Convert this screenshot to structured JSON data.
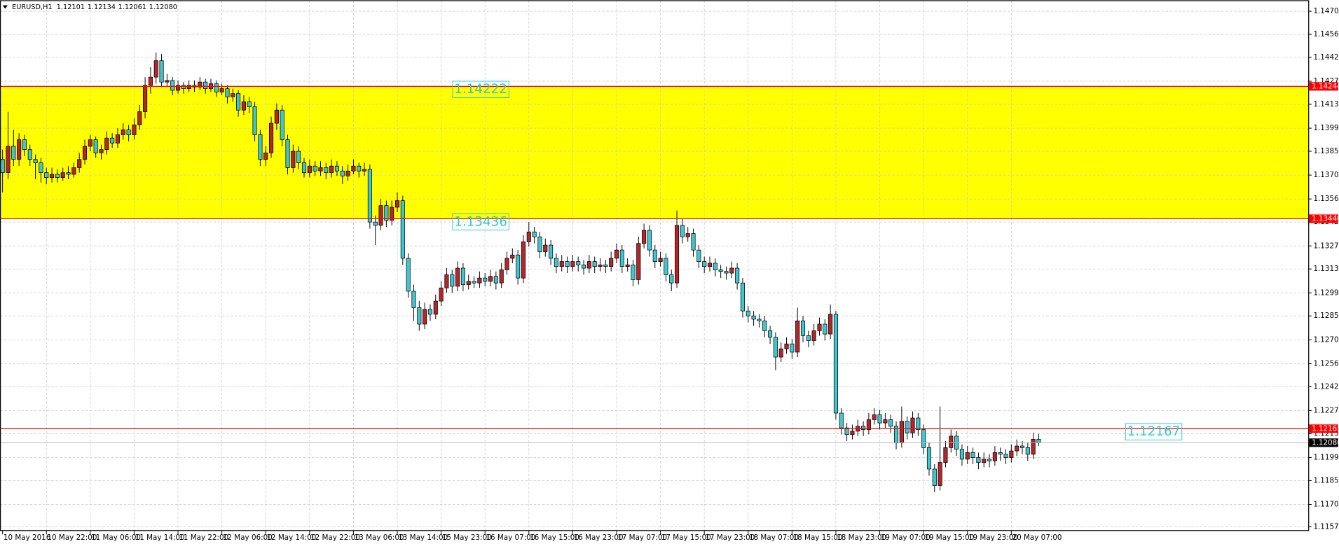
{
  "chart_data": {
    "type": "candlestick",
    "symbol": "EURUSD,H1",
    "header": [
      "1.12101",
      "1.12134",
      "1.12061",
      "1.12080"
    ],
    "ylim": [
      1.11544,
      1.14767
    ],
    "yticks": [
      {
        "value": 1.147,
        "label": "1.14700"
      },
      {
        "value": 1.1456,
        "label": "1.14560"
      },
      {
        "value": 1.1442,
        "label": "1.14420"
      },
      {
        "value": 1.14275,
        "label": "1.14275"
      },
      {
        "value": 1.14135,
        "label": "1.14135"
      },
      {
        "value": 1.1399,
        "label": "1.13990"
      },
      {
        "value": 1.1385,
        "label": "1.13850"
      },
      {
        "value": 1.13705,
        "label": "1.13705"
      },
      {
        "value": 1.1356,
        "label": "1.13560"
      },
      {
        "value": 1.1342,
        "label": "1.13420"
      },
      {
        "value": 1.13275,
        "label": "1.13275"
      },
      {
        "value": 1.13135,
        "label": "1.13135"
      },
      {
        "value": 1.1299,
        "label": "1.12990"
      },
      {
        "value": 1.1285,
        "label": "1.12850"
      },
      {
        "value": 1.12705,
        "label": "1.12705"
      },
      {
        "value": 1.1256,
        "label": "1.12560"
      },
      {
        "value": 1.1242,
        "label": "1.12420"
      },
      {
        "value": 1.12275,
        "label": "1.12275"
      },
      {
        "value": 1.12135,
        "label": "1.12135"
      },
      {
        "value": 1.1199,
        "label": "1.11990"
      },
      {
        "value": 1.1185,
        "label": "1.11850"
      },
      {
        "value": 1.11705,
        "label": "1.11705"
      },
      {
        "value": 1.1157,
        "label": "1.11570"
      }
    ],
    "grid": true,
    "up_color": "#b3262b",
    "down_color": "#3fc6cf",
    "level_color": "#ff0000",
    "zone_color": "#ffff00",
    "levels": [
      1.14244,
      {
        "value": 1.1344,
        "label": "1.13440"
      },
      1.12165
    ],
    "annotations": [
      "1.14222",
      "1.13436",
      "1.12167"
    ],
    "bid": {
      "value": 1.1208,
      "label": "1.12080"
    },
    "categories": [
      "10 May 2016",
      null,
      null,
      null,
      null,
      null,
      null,
      null,
      "10 May 22:00",
      null,
      null,
      null,
      null,
      null,
      null,
      null,
      "11 May 06:00",
      null,
      null,
      null,
      null,
      null,
      null,
      null,
      "11 May 14:00",
      null,
      null,
      null,
      null,
      null,
      null,
      null,
      "11 May 22:00",
      null,
      null,
      null,
      null,
      null,
      null,
      null,
      "12 May 06:00",
      null,
      null,
      null,
      null,
      null,
      null,
      null,
      "12 May 14:00",
      null,
      null,
      null,
      null,
      null,
      null,
      null,
      "12 May 22:00",
      null,
      null,
      null,
      null,
      null,
      null,
      null,
      "13 May 06:00",
      null,
      null,
      null,
      null,
      null,
      null,
      null,
      "13 May 14:00",
      null,
      null,
      null,
      null,
      null,
      null,
      null,
      "15 May 23:00",
      null,
      null,
      null,
      null,
      null,
      null,
      null,
      "16 May 07:00",
      null,
      null,
      null,
      null,
      null,
      null,
      null,
      "16 May 15:00",
      null,
      null,
      null,
      null,
      null,
      null,
      null,
      "16 May 23:00",
      null,
      null,
      null,
      null,
      null,
      null,
      null,
      "17 May 07:00",
      null,
      null,
      null,
      null,
      null,
      null,
      null,
      "17 May 15:00",
      null,
      null,
      null,
      null,
      null,
      null,
      null,
      "17 May 23:00",
      null,
      null,
      null,
      null,
      null,
      null,
      null,
      "18 May 07:00",
      null,
      null,
      null,
      null,
      null,
      null,
      null,
      "18 May 15:00",
      null,
      null,
      null,
      null,
      null,
      null,
      null,
      "18 May 23:00",
      null,
      null,
      null,
      null,
      null,
      null,
      null,
      "19 May 07:00",
      null,
      null,
      null,
      null,
      null,
      null,
      null,
      "19 May 15:00",
      null,
      null,
      null,
      null,
      null,
      null,
      null,
      "19 May 23:00",
      null,
      null,
      null,
      null,
      null,
      null,
      null,
      "20 May 07:00",
      null,
      null,
      null,
      null,
      null
    ],
    "ohlc": [
      [
        1.138,
        1.1386,
        1.136,
        1.1372
      ],
      [
        1.1372,
        1.1409,
        1.1368,
        1.1388
      ],
      [
        1.1388,
        1.1398,
        1.1376,
        1.138
      ],
      [
        1.138,
        1.1396,
        1.1376,
        1.1392
      ],
      [
        1.1392,
        1.1395,
        1.1382,
        1.1386
      ],
      [
        1.1386,
        1.1389,
        1.1376,
        1.138
      ],
      [
        1.138,
        1.1383,
        1.1368,
        1.1378
      ],
      [
        1.1378,
        1.1381,
        1.1366,
        1.1372
      ],
      [
        1.1372,
        1.1375,
        1.1365,
        1.1369
      ],
      [
        1.1369,
        1.1375,
        1.1366,
        1.1371
      ],
      [
        1.1371,
        1.1374,
        1.1366,
        1.1369
      ],
      [
        1.1369,
        1.1375,
        1.1367,
        1.1372
      ],
      [
        1.1372,
        1.1376,
        1.1368,
        1.1371
      ],
      [
        1.1371,
        1.1378,
        1.1369,
        1.1375
      ],
      [
        1.1375,
        1.1384,
        1.1372,
        1.138
      ],
      [
        1.138,
        1.1392,
        1.1377,
        1.1388
      ],
      [
        1.1388,
        1.1395,
        1.1385,
        1.1392
      ],
      [
        1.1392,
        1.1394,
        1.1381,
        1.1384
      ],
      [
        1.1384,
        1.1389,
        1.138,
        1.1386
      ],
      [
        1.1386,
        1.1397,
        1.1383,
        1.1393
      ],
      [
        1.1393,
        1.1396,
        1.1387,
        1.139
      ],
      [
        1.139,
        1.1399,
        1.1387,
        1.1395
      ],
      [
        1.1395,
        1.1402,
        1.1392,
        1.1398
      ],
      [
        1.1398,
        1.1401,
        1.1391,
        1.1395
      ],
      [
        1.1395,
        1.1405,
        1.1392,
        1.1401
      ],
      [
        1.1401,
        1.1413,
        1.1398,
        1.1409
      ],
      [
        1.1409,
        1.143,
        1.1405,
        1.1425
      ],
      [
        1.1425,
        1.1436,
        1.142,
        1.143
      ],
      [
        1.143,
        1.1445,
        1.1426,
        1.144
      ],
      [
        1.144,
        1.1444,
        1.1424,
        1.1427
      ],
      [
        1.1427,
        1.1432,
        1.1424,
        1.1428
      ],
      [
        1.1428,
        1.143,
        1.1419,
        1.1422
      ],
      [
        1.1422,
        1.1428,
        1.142,
        1.1425
      ],
      [
        1.1425,
        1.1427,
        1.142,
        1.1423
      ],
      [
        1.1423,
        1.1428,
        1.1421,
        1.1425
      ],
      [
        1.1425,
        1.1428,
        1.1421,
        1.1424
      ],
      [
        1.1424,
        1.143,
        1.1422,
        1.1427
      ],
      [
        1.1427,
        1.1429,
        1.142,
        1.1423
      ],
      [
        1.1423,
        1.1429,
        1.1421,
        1.1426
      ],
      [
        1.1426,
        1.1428,
        1.1418,
        1.1421
      ],
      [
        1.1421,
        1.1426,
        1.1419,
        1.1423
      ],
      [
        1.1423,
        1.1425,
        1.1414,
        1.1418
      ],
      [
        1.1418,
        1.1423,
        1.1415,
        1.142
      ],
      [
        1.142,
        1.1422,
        1.1406,
        1.141
      ],
      [
        1.141,
        1.1419,
        1.1407,
        1.1415
      ],
      [
        1.1415,
        1.1418,
        1.1408,
        1.1412
      ],
      [
        1.1412,
        1.1415,
        1.1391,
        1.1395
      ],
      [
        1.1395,
        1.1398,
        1.1376,
        1.138
      ],
      [
        1.138,
        1.1388,
        1.1376,
        1.1384
      ],
      [
        1.1384,
        1.1406,
        1.1381,
        1.1402
      ],
      [
        1.1402,
        1.1414,
        1.1398,
        1.141
      ],
      [
        1.141,
        1.1413,
        1.1388,
        1.1392
      ],
      [
        1.1392,
        1.1395,
        1.1371,
        1.1375
      ],
      [
        1.1375,
        1.1389,
        1.1372,
        1.1385
      ],
      [
        1.1385,
        1.1388,
        1.1374,
        1.1378
      ],
      [
        1.1378,
        1.1381,
        1.1369,
        1.1372
      ],
      [
        1.1372,
        1.138,
        1.1369,
        1.1376
      ],
      [
        1.1376,
        1.1379,
        1.137,
        1.1373
      ],
      [
        1.1373,
        1.1379,
        1.137,
        1.1375
      ],
      [
        1.1375,
        1.1378,
        1.1368,
        1.1372
      ],
      [
        1.1372,
        1.138,
        1.1369,
        1.1376
      ],
      [
        1.1376,
        1.1379,
        1.137,
        1.1373
      ],
      [
        1.1373,
        1.1376,
        1.1365,
        1.137
      ],
      [
        1.137,
        1.1377,
        1.1367,
        1.1373
      ],
      [
        1.1373,
        1.138,
        1.1371,
        1.1376
      ],
      [
        1.1376,
        1.1378,
        1.1369,
        1.1373
      ],
      [
        1.1373,
        1.1378,
        1.137,
        1.1374
      ],
      [
        1.1374,
        1.1377,
        1.1338,
        1.1342
      ],
      [
        1.1342,
        1.1346,
        1.1328,
        1.134
      ],
      [
        1.134,
        1.1356,
        1.1337,
        1.1352
      ],
      [
        1.1352,
        1.1355,
        1.1339,
        1.1343
      ],
      [
        1.1343,
        1.1355,
        1.134,
        1.1351
      ],
      [
        1.1351,
        1.136,
        1.1348,
        1.1355
      ],
      [
        1.1355,
        1.1358,
        1.1316,
        1.132
      ],
      [
        1.132,
        1.1323,
        1.1296,
        1.13
      ],
      [
        1.13,
        1.1304,
        1.1282,
        1.129
      ],
      [
        1.129,
        1.1294,
        1.1276,
        1.128
      ],
      [
        1.128,
        1.1293,
        1.1277,
        1.1289
      ],
      [
        1.1289,
        1.1292,
        1.1282,
        1.1286
      ],
      [
        1.1286,
        1.1298,
        1.1283,
        1.1294
      ],
      [
        1.1294,
        1.1306,
        1.1291,
        1.1302
      ],
      [
        1.1302,
        1.1314,
        1.1299,
        1.131
      ],
      [
        1.131,
        1.1313,
        1.1299,
        1.1303
      ],
      [
        1.1303,
        1.1318,
        1.13,
        1.1314
      ],
      [
        1.1314,
        1.1317,
        1.13,
        1.1304
      ],
      [
        1.1304,
        1.131,
        1.1301,
        1.1306
      ],
      [
        1.1306,
        1.1309,
        1.1302,
        1.1305
      ],
      [
        1.1305,
        1.1312,
        1.1302,
        1.1308
      ],
      [
        1.1308,
        1.1311,
        1.1303,
        1.1306
      ],
      [
        1.1306,
        1.1313,
        1.1303,
        1.1309
      ],
      [
        1.1309,
        1.1312,
        1.1301,
        1.1305
      ],
      [
        1.1305,
        1.1317,
        1.1302,
        1.1313
      ],
      [
        1.1313,
        1.1324,
        1.131,
        1.132
      ],
      [
        1.132,
        1.1326,
        1.1317,
        1.1322
      ],
      [
        1.1322,
        1.1325,
        1.1304,
        1.1308
      ],
      [
        1.1308,
        1.1334,
        1.1305,
        1.133
      ],
      [
        1.133,
        1.1342,
        1.1327,
        1.1336
      ],
      [
        1.1336,
        1.1339,
        1.1329,
        1.1333
      ],
      [
        1.1333,
        1.1336,
        1.132,
        1.1324
      ],
      [
        1.1324,
        1.1332,
        1.1321,
        1.1328
      ],
      [
        1.1328,
        1.1331,
        1.1316,
        1.132
      ],
      [
        1.132,
        1.1323,
        1.1311,
        1.1315
      ],
      [
        1.1315,
        1.1322,
        1.1312,
        1.1318
      ],
      [
        1.1318,
        1.1321,
        1.1311,
        1.1315
      ],
      [
        1.1315,
        1.1322,
        1.1312,
        1.1318
      ],
      [
        1.1318,
        1.1321,
        1.1312,
        1.1316
      ],
      [
        1.1316,
        1.1319,
        1.131,
        1.1314
      ],
      [
        1.1314,
        1.1322,
        1.1311,
        1.1318
      ],
      [
        1.1318,
        1.1321,
        1.1311,
        1.1315
      ],
      [
        1.1315,
        1.132,
        1.1312,
        1.1316
      ],
      [
        1.1316,
        1.1319,
        1.1311,
        1.1315
      ],
      [
        1.1315,
        1.1324,
        1.1312,
        1.132
      ],
      [
        1.132,
        1.1329,
        1.1317,
        1.1325
      ],
      [
        1.1325,
        1.1328,
        1.1311,
        1.1315
      ],
      [
        1.1315,
        1.132,
        1.1312,
        1.1316
      ],
      [
        1.1316,
        1.1319,
        1.1303,
        1.1307
      ],
      [
        1.1307,
        1.1333,
        1.1304,
        1.1329
      ],
      [
        1.1329,
        1.1341,
        1.1326,
        1.1337
      ],
      [
        1.1337,
        1.134,
        1.1321,
        1.1325
      ],
      [
        1.1325,
        1.1328,
        1.1314,
        1.1318
      ],
      [
        1.1318,
        1.1324,
        1.1315,
        1.132
      ],
      [
        1.132,
        1.1323,
        1.1306,
        1.131
      ],
      [
        1.131,
        1.1313,
        1.13,
        1.1305
      ],
      [
        1.1305,
        1.1349,
        1.1302,
        1.134
      ],
      [
        1.134,
        1.1344,
        1.1329,
        1.1333
      ],
      [
        1.1333,
        1.1339,
        1.133,
        1.1335
      ],
      [
        1.1335,
        1.1338,
        1.1321,
        1.1325
      ],
      [
        1.1325,
        1.1328,
        1.1314,
        1.1318
      ],
      [
        1.1318,
        1.1321,
        1.1311,
        1.1315
      ],
      [
        1.1315,
        1.1321,
        1.1312,
        1.1317
      ],
      [
        1.1317,
        1.132,
        1.1309,
        1.1313
      ],
      [
        1.1313,
        1.1316,
        1.1308,
        1.1312
      ],
      [
        1.1312,
        1.1315,
        1.1307,
        1.1311
      ],
      [
        1.1311,
        1.1318,
        1.1308,
        1.1314
      ],
      [
        1.1314,
        1.1317,
        1.1301,
        1.1305
      ],
      [
        1.1305,
        1.1308,
        1.1284,
        1.1288
      ],
      [
        1.1288,
        1.1291,
        1.1281,
        1.1285
      ],
      [
        1.1285,
        1.1288,
        1.1279,
        1.1283
      ],
      [
        1.1283,
        1.1286,
        1.1278,
        1.1282
      ],
      [
        1.1282,
        1.1285,
        1.1272,
        1.1276
      ],
      [
        1.1276,
        1.1279,
        1.1268,
        1.1272
      ],
      [
        1.1272,
        1.1275,
        1.1252,
        1.126
      ],
      [
        1.126,
        1.1269,
        1.1257,
        1.1265
      ],
      [
        1.1265,
        1.1272,
        1.1262,
        1.1268
      ],
      [
        1.1268,
        1.1271,
        1.1259,
        1.1263
      ],
      [
        1.1263,
        1.129,
        1.126,
        1.1282
      ],
      [
        1.1282,
        1.1285,
        1.1269,
        1.1273
      ],
      [
        1.1273,
        1.1276,
        1.1266,
        1.127
      ],
      [
        1.127,
        1.128,
        1.1267,
        1.1276
      ],
      [
        1.1276,
        1.1284,
        1.1273,
        1.128
      ],
      [
        1.128,
        1.1283,
        1.127,
        1.1274
      ],
      [
        1.1274,
        1.1292,
        1.1271,
        1.1286
      ],
      [
        1.1286,
        1.1288,
        1.1222,
        1.1226
      ],
      [
        1.1226,
        1.1229,
        1.1213,
        1.1217
      ],
      [
        1.1217,
        1.122,
        1.1209,
        1.1213
      ],
      [
        1.1213,
        1.1219,
        1.121,
        1.1215
      ],
      [
        1.1215,
        1.1222,
        1.1212,
        1.1218
      ],
      [
        1.1218,
        1.1221,
        1.1212,
        1.1216
      ],
      [
        1.1216,
        1.1226,
        1.1213,
        1.1222
      ],
      [
        1.1222,
        1.1229,
        1.1219,
        1.1225
      ],
      [
        1.1225,
        1.1228,
        1.1216,
        1.122
      ],
      [
        1.122,
        1.1226,
        1.1217,
        1.1222
      ],
      [
        1.1222,
        1.1225,
        1.1214,
        1.1218
      ],
      [
        1.1218,
        1.1221,
        1.1204,
        1.1208
      ],
      [
        1.1208,
        1.123,
        1.1205,
        1.1221
      ],
      [
        1.1221,
        1.1224,
        1.121,
        1.1214
      ],
      [
        1.1214,
        1.1227,
        1.1211,
        1.1223
      ],
      [
        1.1223,
        1.1226,
        1.1212,
        1.1216
      ],
      [
        1.1216,
        1.1219,
        1.1201,
        1.1205
      ],
      [
        1.1205,
        1.1208,
        1.1188,
        1.1192
      ],
      [
        1.1192,
        1.1195,
        1.1178,
        1.1182
      ],
      [
        1.1182,
        1.123,
        1.1179,
        1.1196
      ],
      [
        1.1196,
        1.1209,
        1.1193,
        1.1205
      ],
      [
        1.1205,
        1.1216,
        1.1202,
        1.1212
      ],
      [
        1.1212,
        1.1215,
        1.12,
        1.1204
      ],
      [
        1.1204,
        1.1207,
        1.1194,
        1.1198
      ],
      [
        1.1198,
        1.1206,
        1.1195,
        1.1202
      ],
      [
        1.1202,
        1.1205,
        1.1195,
        1.1199
      ],
      [
        1.1199,
        1.1202,
        1.1192,
        1.1196
      ],
      [
        1.1196,
        1.1202,
        1.1193,
        1.1198
      ],
      [
        1.1198,
        1.1201,
        1.1193,
        1.1197
      ],
      [
        1.1197,
        1.1206,
        1.1194,
        1.1202
      ],
      [
        1.1202,
        1.1205,
        1.1197,
        1.1201
      ],
      [
        1.1201,
        1.1204,
        1.1195,
        1.1199
      ],
      [
        1.1199,
        1.1207,
        1.1196,
        1.1203
      ],
      [
        1.1203,
        1.121,
        1.12,
        1.1206
      ],
      [
        1.1206,
        1.1209,
        1.1201,
        1.1205
      ],
      [
        1.1205,
        1.1208,
        1.1197,
        1.1201
      ],
      [
        1.1201,
        1.1214,
        1.1198,
        1.12101
      ],
      [
        1.12101,
        1.12134,
        1.12061,
        1.1208
      ]
    ]
  }
}
